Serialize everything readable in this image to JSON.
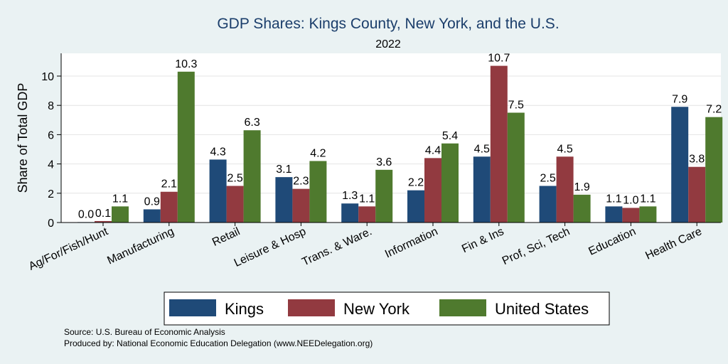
{
  "chart_data": {
    "type": "bar",
    "title": "GDP Shares: Kings County, New York, and the U.S.",
    "subtitle": "2022",
    "ylabel": "Share of Total GDP",
    "xlabel": "",
    "ylim": [
      0,
      12
    ],
    "yticks": [
      0,
      2,
      4,
      6,
      8,
      10
    ],
    "grid": true,
    "legend_position": "bottom",
    "categories": [
      "Ag/For/Fish/Hunt",
      "Manufacturing",
      "Retail",
      "Leisure & Hosp",
      "Trans. & Ware.",
      "Information",
      "Fin & Ins",
      "Prof, Sci, Tech",
      "Education",
      "Health Care"
    ],
    "series": [
      {
        "name": "Kings",
        "color": "#1f4a78",
        "values": [
          0.0,
          0.9,
          4.3,
          3.1,
          1.3,
          2.2,
          4.5,
          2.5,
          1.1,
          7.9
        ],
        "labels": [
          "0.0",
          "0.9",
          "4.3",
          "3.1",
          "1.3",
          "2.2",
          "4.5",
          "2.5",
          "1.1",
          "7.9"
        ]
      },
      {
        "name": "New York",
        "color": "#923a40",
        "values": [
          0.1,
          2.1,
          2.5,
          2.3,
          1.1,
          4.4,
          10.7,
          4.5,
          1.0,
          3.8
        ],
        "labels": [
          "0.1",
          "2.1",
          "2.5",
          "2.3",
          "1.1",
          "4.4",
          "10.7",
          "4.5",
          "1.0",
          "3.8"
        ]
      },
      {
        "name": "United States",
        "color": "#4f7a2e",
        "values": [
          1.1,
          10.3,
          6.3,
          4.2,
          3.6,
          5.4,
          7.5,
          1.9,
          1.1,
          7.2
        ],
        "labels": [
          "1.1",
          "10.3",
          "6.3",
          "4.2",
          "3.6",
          "5.4",
          "7.5",
          "1.9",
          "1.1",
          "7.2"
        ]
      }
    ]
  },
  "notes": {
    "source": "Source: U.S. Bureau of Economic Analysis",
    "produced_by": "Produced by: National Economic Education Delegation (www.NEEDelegation.org)"
  }
}
